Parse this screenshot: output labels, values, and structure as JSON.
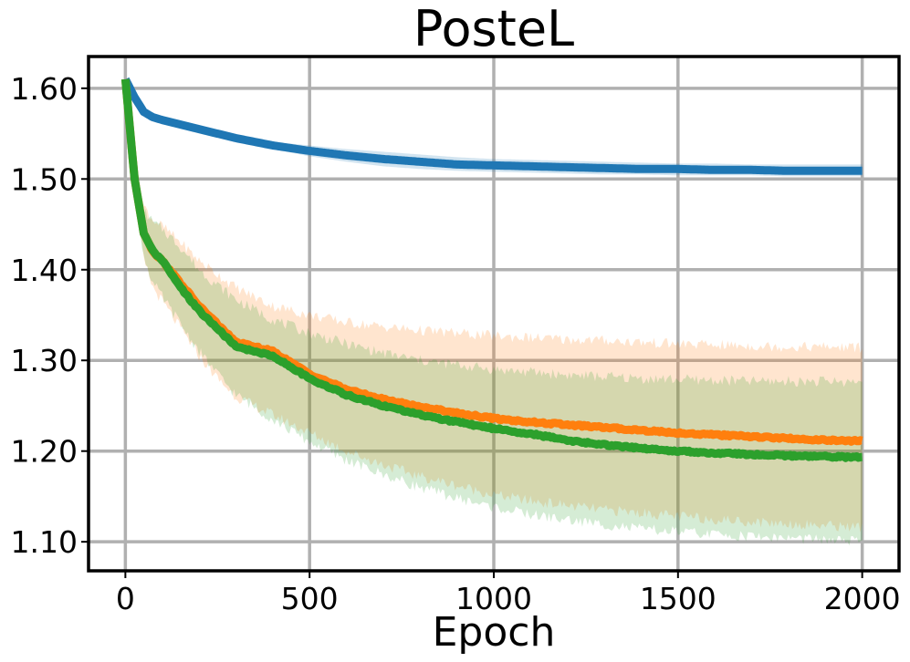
{
  "chart_data": {
    "type": "line",
    "title": "PosteL",
    "xlabel": "Epoch",
    "ylabel": "",
    "xlim": [
      -100,
      2100
    ],
    "ylim": [
      1.068,
      1.635
    ],
    "xticks": [
      0,
      500,
      1000,
      1500,
      2000
    ],
    "xtick_labels": [
      "0",
      "500",
      "1000",
      "1500",
      "2000"
    ],
    "yticks": [
      1.1,
      1.2,
      1.3,
      1.4,
      1.5,
      1.6
    ],
    "ytick_labels": [
      "1.10",
      "1.20",
      "1.30",
      "1.40",
      "1.50",
      "1.60"
    ],
    "grid": true,
    "legend": "none",
    "x": [
      0,
      25,
      50,
      75,
      100,
      150,
      200,
      250,
      300,
      400,
      500,
      600,
      700,
      800,
      900,
      1000,
      1100,
      1200,
      1300,
      1400,
      1500,
      1600,
      1700,
      1800,
      1900,
      2000
    ],
    "series": [
      {
        "color": "#1f77b4",
        "values": [
          1.61,
          1.59,
          1.574,
          1.568,
          1.565,
          1.56,
          1.555,
          1.55,
          1.545,
          1.537,
          1.531,
          1.526,
          1.522,
          1.519,
          1.516,
          1.515,
          1.514,
          1.513,
          1.512,
          1.511,
          1.511,
          1.51,
          1.51,
          1.509,
          1.509,
          1.509
        ],
        "lower": [
          1.61,
          1.588,
          1.572,
          1.566,
          1.563,
          1.558,
          1.553,
          1.548,
          1.542,
          1.533,
          1.525,
          1.519,
          1.514,
          1.511,
          1.509,
          1.508,
          1.507,
          1.506,
          1.505,
          1.505,
          1.504,
          1.504,
          1.504,
          1.503,
          1.503,
          1.503
        ],
        "upper": [
          1.61,
          1.592,
          1.576,
          1.57,
          1.567,
          1.562,
          1.557,
          1.552,
          1.548,
          1.541,
          1.537,
          1.533,
          1.53,
          1.527,
          1.524,
          1.522,
          1.521,
          1.52,
          1.519,
          1.518,
          1.517,
          1.517,
          1.516,
          1.516,
          1.516,
          1.516
        ]
      },
      {
        "color": "#ff7f0e",
        "values": [
          1.61,
          1.5,
          1.44,
          1.42,
          1.41,
          1.385,
          1.36,
          1.34,
          1.32,
          1.31,
          1.285,
          1.268,
          1.257,
          1.249,
          1.242,
          1.236,
          1.232,
          1.229,
          1.226,
          1.223,
          1.22,
          1.218,
          1.216,
          1.214,
          1.212,
          1.211
        ],
        "lower": [
          1.61,
          1.48,
          1.41,
          1.38,
          1.365,
          1.335,
          1.305,
          1.28,
          1.26,
          1.24,
          1.22,
          1.2,
          1.185,
          1.172,
          1.162,
          1.152,
          1.145,
          1.14,
          1.135,
          1.132,
          1.128,
          1.125,
          1.122,
          1.12,
          1.118,
          1.116
        ],
        "upper": [
          1.61,
          1.52,
          1.47,
          1.455,
          1.448,
          1.43,
          1.41,
          1.395,
          1.38,
          1.36,
          1.35,
          1.342,
          1.337,
          1.333,
          1.33,
          1.327,
          1.325,
          1.323,
          1.322,
          1.32,
          1.318,
          1.317,
          1.316,
          1.315,
          1.315,
          1.314
        ]
      },
      {
        "color": "#2ca02c",
        "values": [
          1.61,
          1.5,
          1.44,
          1.42,
          1.41,
          1.38,
          1.355,
          1.335,
          1.315,
          1.305,
          1.28,
          1.262,
          1.25,
          1.24,
          1.232,
          1.225,
          1.219,
          1.212,
          1.207,
          1.203,
          1.2,
          1.198,
          1.196,
          1.195,
          1.194,
          1.193
        ],
        "lower": [
          1.61,
          1.485,
          1.415,
          1.385,
          1.37,
          1.34,
          1.31,
          1.285,
          1.262,
          1.235,
          1.21,
          1.19,
          1.174,
          1.16,
          1.148,
          1.138,
          1.13,
          1.124,
          1.119,
          1.114,
          1.111,
          1.108,
          1.106,
          1.104,
          1.102,
          1.1
        ],
        "upper": [
          1.61,
          1.515,
          1.465,
          1.452,
          1.445,
          1.425,
          1.4,
          1.383,
          1.367,
          1.345,
          1.33,
          1.318,
          1.308,
          1.3,
          1.295,
          1.29,
          1.287,
          1.284,
          1.282,
          1.28,
          1.279,
          1.278,
          1.277,
          1.277,
          1.277,
          1.276
        ]
      }
    ]
  }
}
